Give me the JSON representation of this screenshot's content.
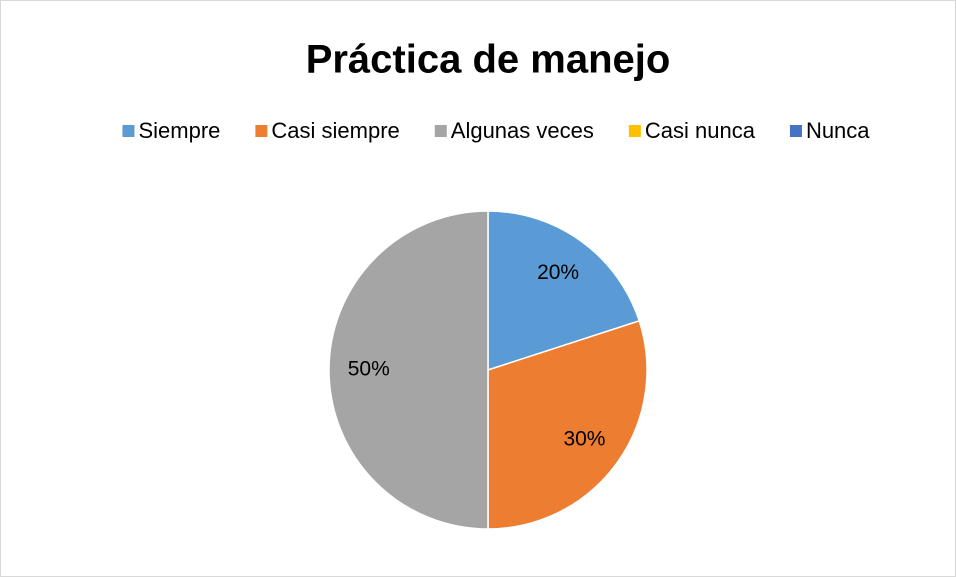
{
  "chart_data": {
    "type": "pie",
    "title": "Práctica de manejo",
    "categories": [
      "Siempre",
      "Casi siempre",
      "Algunas veces",
      "Casi nunca",
      "Nunca"
    ],
    "values": [
      20,
      30,
      50,
      0,
      0
    ],
    "value_labels": [
      "20%",
      "30%",
      "50%",
      null,
      null
    ],
    "colors": [
      "#5b9bd5",
      "#ed7d31",
      "#a5a5a5",
      "#ffc000",
      "#4472c4"
    ],
    "legend": "top"
  }
}
